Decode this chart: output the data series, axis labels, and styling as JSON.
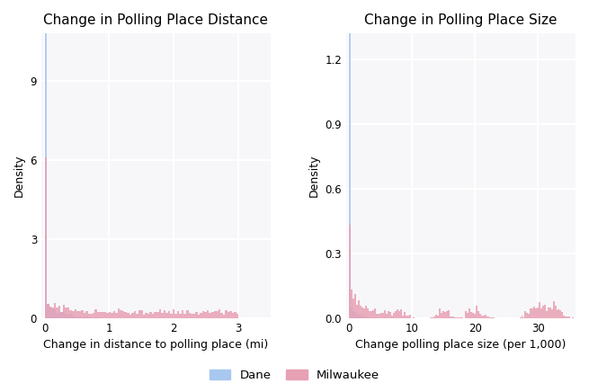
{
  "title_left": "Change in Polling Place Distance",
  "title_right": "Change in Polling Place Size",
  "xlabel_left": "Change in distance to polling place (mi)",
  "xlabel_right": "Change polling place size (per 1,000)",
  "ylabel": "Density",
  "dane_color": "#a8c8f0",
  "milwaukee_color": "#e8a0b4",
  "background_color": "#f7f7f9",
  "grid_color": "#ffffff",
  "legend_labels": [
    "Dane",
    "Milwaukee"
  ],
  "left_xlim": [
    -0.05,
    3.5
  ],
  "left_ylim": [
    0,
    10.8
  ],
  "left_yticks": [
    0,
    3,
    6,
    9
  ],
  "left_xticks": [
    0,
    1,
    2,
    3
  ],
  "right_xlim": [
    -0.5,
    36
  ],
  "right_ylim": [
    0,
    1.32
  ],
  "right_yticks": [
    0.0,
    0.3,
    0.6,
    0.9,
    1.2
  ],
  "right_xticks": [
    0,
    10,
    20,
    30
  ],
  "title_fontsize": 11,
  "label_fontsize": 9,
  "tick_fontsize": 8.5,
  "fig_width": 6.55,
  "fig_height": 4.36
}
